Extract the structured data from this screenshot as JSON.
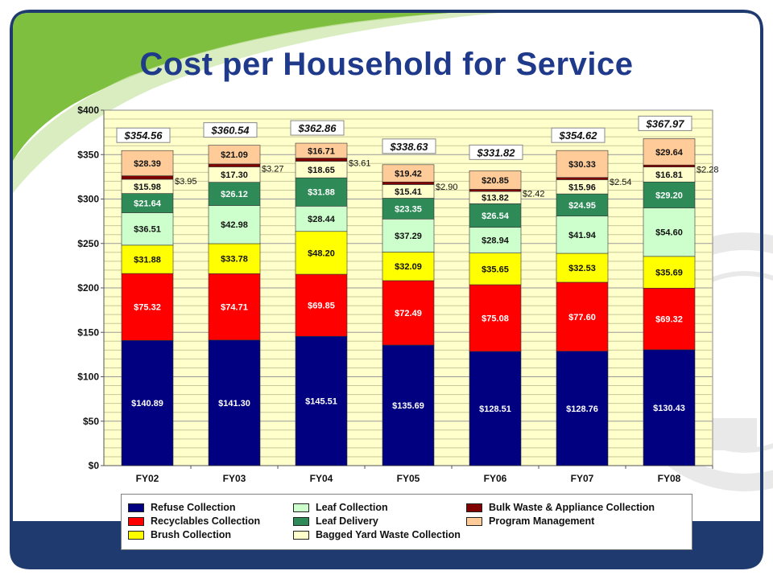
{
  "slide": {
    "title": "Cost per Household for Service"
  },
  "chart_data": {
    "type": "bar",
    "stacked": true,
    "categories": [
      "FY02",
      "FY03",
      "FY04",
      "FY05",
      "FY06",
      "FY07",
      "FY08"
    ],
    "ylim": [
      0,
      400
    ],
    "yticks": [
      0,
      50,
      100,
      150,
      200,
      250,
      300,
      350,
      400
    ],
    "ytick_labels": [
      "$0",
      "$50",
      "$100",
      "$150",
      "$200",
      "$250",
      "$300",
      "$350",
      "$400"
    ],
    "grid": true,
    "legend_position": "bottom",
    "series": [
      {
        "name": "Refuse Collection",
        "color": "#000080",
        "label_color": "#ffffff",
        "values": [
          140.89,
          141.3,
          145.51,
          135.69,
          128.51,
          128.76,
          130.43
        ],
        "labels": [
          "$140.89",
          "$141.30",
          "$145.51",
          "$135.69",
          "$128.51",
          "$128.76",
          "$130.43"
        ]
      },
      {
        "name": "Recyclables Collection",
        "color": "#ff0000",
        "label_color": "#ffffff",
        "values": [
          75.32,
          74.71,
          69.85,
          72.49,
          75.08,
          77.6,
          69.32
        ],
        "labels": [
          "$75.32",
          "$74.71",
          "$69.85",
          "$72.49",
          "$75.08",
          "$77.60",
          "$69.32"
        ]
      },
      {
        "name": "Brush Collection",
        "color": "#ffff00",
        "label_color": "#111111",
        "values": [
          31.88,
          33.78,
          48.2,
          32.09,
          35.65,
          32.53,
          35.69
        ],
        "labels": [
          "$31.88",
          "$33.78",
          "$48.20",
          "$32.09",
          "$35.65",
          "$32.53",
          "$35.69"
        ]
      },
      {
        "name": "Leaf Collection",
        "color": "#ccffcc",
        "label_color": "#111111",
        "values": [
          36.51,
          42.98,
          28.44,
          37.29,
          28.94,
          41.94,
          54.6
        ],
        "labels": [
          "$36.51",
          "$42.98",
          "$28.44",
          "$37.29",
          "$28.94",
          "$41.94",
          "$54.60"
        ]
      },
      {
        "name": "Leaf Delivery",
        "color": "#2e8b57",
        "label_color": "#ffffff",
        "values": [
          21.64,
          26.12,
          31.88,
          23.35,
          26.54,
          24.95,
          29.2
        ],
        "labels": [
          "$21.64",
          "$26.12",
          "$31.88",
          "$23.35",
          "$26.54",
          "$24.95",
          "$29.20"
        ]
      },
      {
        "name": "Bagged Yard Waste Collection",
        "color": "#ffffcc",
        "label_color": "#111111",
        "values": [
          15.98,
          17.3,
          18.65,
          15.41,
          13.82,
          15.96,
          16.81
        ],
        "labels": [
          "$15.98",
          "$17.30",
          "$18.65",
          "$15.41",
          "$13.82",
          "$15.96",
          "$16.81"
        ]
      },
      {
        "name": "Bulk Waste & Appliance Collection",
        "color": "#800000",
        "label_color": "#111111",
        "values": [
          3.95,
          3.27,
          3.61,
          2.9,
          2.42,
          2.54,
          2.28
        ],
        "labels": [
          "$3.95",
          "$3.27",
          "$3.61",
          "$2.90",
          "$2.42",
          "$2.54",
          "$2.28"
        ]
      },
      {
        "name": "Program Management",
        "color": "#ffcc99",
        "label_color": "#111111",
        "values": [
          28.39,
          21.09,
          16.71,
          19.42,
          20.85,
          30.33,
          29.64
        ],
        "labels": [
          "$28.39",
          "$21.09",
          "$16.71",
          "$19.42",
          "$20.85",
          "$30.33",
          "$29.64"
        ]
      }
    ],
    "totals": [
      "$354.56",
      "$360.54",
      "$362.86",
      "$338.63",
      "$331.82",
      "$354.62",
      "$367.97"
    ]
  },
  "legend": {
    "items": [
      {
        "label": "Refuse Collection",
        "color": "#000080"
      },
      {
        "label": "Leaf Collection",
        "color": "#ccffcc"
      },
      {
        "label": "Bulk Waste & Appliance Collection",
        "color": "#800000"
      },
      {
        "label": "Recyclables Collection",
        "color": "#ff0000"
      },
      {
        "label": "Leaf Delivery",
        "color": "#2e8b57"
      },
      {
        "label": "Program Management",
        "color": "#ffcc99"
      },
      {
        "label": "Brush Collection",
        "color": "#ffff00"
      },
      {
        "label": "Bagged Yard Waste Collection",
        "color": "#ffffcc"
      }
    ]
  },
  "theme": {
    "title_color": "#1f3a8a",
    "frame_color": "#1f3a6e",
    "swoosh_color": "#7fbf3f",
    "plot_bg": "#ffffcc"
  }
}
